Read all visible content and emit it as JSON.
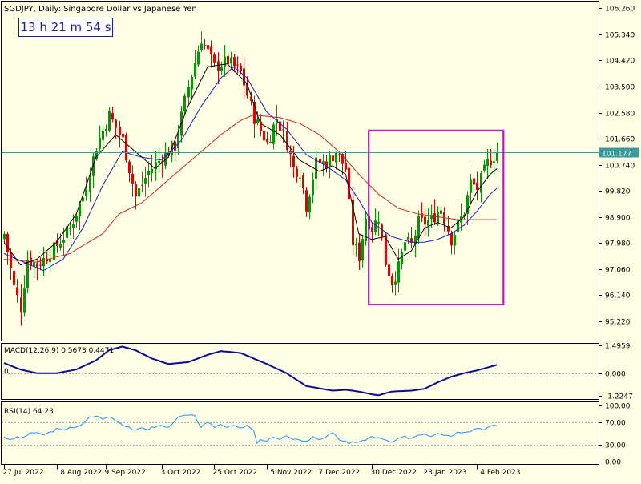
{
  "chart_data": {
    "type": "candlestick",
    "symbol": "SGDJPY",
    "timeframe": "Daily",
    "description": "Singapore Dollar vs Japanese Yen",
    "timer": "13 h 21 m 54 s",
    "current_price": 101.177,
    "price_label": "101.177",
    "price_axis": {
      "range": [
        94.5,
        106.5
      ],
      "ticks": [
        {
          "value": 106.26,
          "label": "106.260"
        },
        {
          "value": 105.34,
          "label": "105.340"
        },
        {
          "value": 104.42,
          "label": "104.420"
        },
        {
          "value": 103.5,
          "label": "103.500"
        },
        {
          "value": 102.58,
          "label": "102.580"
        },
        {
          "value": 101.66,
          "label": "101.660"
        },
        {
          "value": 100.74,
          "label": "100.740"
        },
        {
          "value": 99.82,
          "label": "99.820"
        },
        {
          "value": 98.9,
          "label": "98.900"
        },
        {
          "value": 97.98,
          "label": "97.980"
        },
        {
          "value": 97.06,
          "label": "97.060"
        },
        {
          "value": 96.14,
          "label": "96.140"
        },
        {
          "value": 95.22,
          "label": "95.220"
        }
      ]
    },
    "x_axis_labels": [
      {
        "index": 0,
        "label": "27 Jul 2022"
      },
      {
        "index": 16,
        "label": "18 Aug 2022"
      },
      {
        "index": 31,
        "label": "9 Sep 2022"
      },
      {
        "index": 48,
        "label": "3 Oct 2022"
      },
      {
        "index": 64,
        "label": "25 Oct 2022"
      },
      {
        "index": 80,
        "label": "15 Nov 2022"
      },
      {
        "index": 96,
        "label": "7 Dec 2022"
      },
      {
        "index": 112,
        "label": "30 Dec 2022"
      },
      {
        "index": 128,
        "label": "23 Jan 2023"
      },
      {
        "index": 144,
        "label": "14 Feb 2023"
      }
    ],
    "close_path": [
      [
        0,
        98.3
      ],
      [
        3,
        96.4
      ],
      [
        5,
        95.7
      ],
      [
        7,
        97.4
      ],
      [
        10,
        97.2
      ],
      [
        13,
        97.5
      ],
      [
        16,
        97.9
      ],
      [
        20,
        98.5
      ],
      [
        24,
        99.6
      ],
      [
        28,
        101.4
      ],
      [
        32,
        102.5
      ],
      [
        36,
        101.6
      ],
      [
        40,
        99.6
      ],
      [
        44,
        100.5
      ],
      [
        48,
        101.0
      ],
      [
        52,
        101.4
      ],
      [
        56,
        103.5
      ],
      [
        60,
        105.2
      ],
      [
        64,
        104.2
      ],
      [
        68,
        104.4
      ],
      [
        72,
        104.0
      ],
      [
        76,
        102.4
      ],
      [
        80,
        101.5
      ],
      [
        83,
        102.4
      ],
      [
        86,
        101.5
      ],
      [
        88,
        100.6
      ],
      [
        90,
        100.5
      ],
      [
        92,
        99.3
      ],
      [
        95,
        100.8
      ],
      [
        98,
        100.8
      ],
      [
        101,
        101.2
      ],
      [
        104,
        100.6
      ],
      [
        106,
        98.0
      ],
      [
        108,
        97.5
      ],
      [
        110,
        98.9
      ],
      [
        112,
        98.5
      ],
      [
        114,
        98.9
      ],
      [
        116,
        97.3
      ],
      [
        118,
        96.6
      ],
      [
        120,
        97.1
      ],
      [
        122,
        98.0
      ],
      [
        124,
        97.9
      ],
      [
        126,
        98.7
      ],
      [
        128,
        98.7
      ],
      [
        130,
        98.8
      ],
      [
        133,
        99.2
      ],
      [
        136,
        98.1
      ],
      [
        140,
        99.1
      ],
      [
        142,
        100.1
      ],
      [
        144,
        99.9
      ],
      [
        147,
        100.8
      ],
      [
        150,
        101.177
      ]
    ],
    "ma_fast_path": [
      [
        0,
        98.0
      ],
      [
        5,
        97.2
      ],
      [
        10,
        97.4
      ],
      [
        16,
        98.0
      ],
      [
        22,
        99.0
      ],
      [
        28,
        101.0
      ],
      [
        34,
        101.8
      ],
      [
        40,
        101.2
      ],
      [
        46,
        100.6
      ],
      [
        50,
        101.0
      ],
      [
        56,
        102.8
      ],
      [
        62,
        104.2
      ],
      [
        68,
        104.3
      ],
      [
        74,
        103.6
      ],
      [
        78,
        102.2
      ],
      [
        84,
        101.8
      ],
      [
        90,
        100.9
      ],
      [
        96,
        100.5
      ],
      [
        100,
        100.7
      ],
      [
        104,
        100.4
      ],
      [
        108,
        98.3
      ],
      [
        112,
        98.1
      ],
      [
        116,
        98.2
      ],
      [
        120,
        97.4
      ],
      [
        124,
        97.7
      ],
      [
        128,
        98.5
      ],
      [
        132,
        98.7
      ],
      [
        136,
        98.5
      ],
      [
        140,
        98.9
      ],
      [
        144,
        99.8
      ],
      [
        148,
        100.4
      ],
      [
        150,
        100.6
      ]
    ],
    "ma_mid_path": [
      [
        0,
        97.6
      ],
      [
        6,
        97.3
      ],
      [
        12,
        97.0
      ],
      [
        18,
        97.4
      ],
      [
        24,
        98.5
      ],
      [
        30,
        100.0
      ],
      [
        36,
        101.2
      ],
      [
        42,
        101.0
      ],
      [
        48,
        100.9
      ],
      [
        54,
        101.6
      ],
      [
        60,
        102.8
      ],
      [
        66,
        103.8
      ],
      [
        70,
        104.2
      ],
      [
        74,
        103.8
      ],
      [
        80,
        102.6
      ],
      [
        86,
        102.0
      ],
      [
        92,
        101.1
      ],
      [
        98,
        100.7
      ],
      [
        104,
        100.2
      ],
      [
        108,
        99.5
      ],
      [
        112,
        98.7
      ],
      [
        118,
        98.2
      ],
      [
        124,
        98.0
      ],
      [
        128,
        98.0
      ],
      [
        132,
        98.1
      ],
      [
        136,
        98.3
      ],
      [
        140,
        98.6
      ],
      [
        144,
        99.1
      ],
      [
        148,
        99.7
      ],
      [
        150,
        99.9
      ]
    ],
    "ma_slow_path": [
      [
        0,
        97.4
      ],
      [
        10,
        97.3
      ],
      [
        20,
        97.6
      ],
      [
        30,
        98.3
      ],
      [
        35,
        99.0
      ],
      [
        42,
        99.4
      ],
      [
        48,
        100.0
      ],
      [
        54,
        100.6
      ],
      [
        60,
        101.2
      ],
      [
        66,
        101.8
      ],
      [
        72,
        102.3
      ],
      [
        76,
        102.5
      ],
      [
        84,
        102.4
      ],
      [
        90,
        102.2
      ],
      [
        96,
        101.8
      ],
      [
        102,
        101.2
      ],
      [
        108,
        100.4
      ],
      [
        114,
        99.7
      ],
      [
        120,
        99.2
      ],
      [
        126,
        99.0
      ],
      [
        132,
        98.9
      ],
      [
        138,
        98.8
      ],
      [
        144,
        98.8
      ],
      [
        148,
        98.8
      ],
      [
        150,
        98.8
      ]
    ],
    "highlight_box": {
      "from_index": 111,
      "to_index": 152,
      "price_top": 101.95,
      "price_bottom": 95.8
    },
    "macd": {
      "label": "MACD(12,26,9) 0.5673 0.4471",
      "zero_label": "0",
      "range": [
        -1.45,
        1.6
      ],
      "ticks": [
        {
          "value": 1.4959,
          "label": "1.4959"
        },
        {
          "value": 0.0,
          "label": "0.000"
        },
        {
          "value": -1.2247,
          "label": "-1.2247"
        }
      ],
      "path": [
        [
          0,
          0.55
        ],
        [
          5,
          0.2
        ],
        [
          10,
          0.0
        ],
        [
          16,
          0.0
        ],
        [
          22,
          0.2
        ],
        [
          28,
          0.7
        ],
        [
          32,
          1.25
        ],
        [
          36,
          1.45
        ],
        [
          40,
          1.25
        ],
        [
          45,
          0.8
        ],
        [
          50,
          0.5
        ],
        [
          56,
          0.6
        ],
        [
          62,
          1.0
        ],
        [
          66,
          1.2
        ],
        [
          72,
          1.1
        ],
        [
          76,
          0.8
        ],
        [
          80,
          0.5
        ],
        [
          86,
          0.0
        ],
        [
          92,
          -0.7
        ],
        [
          100,
          -0.95
        ],
        [
          104,
          -0.9
        ],
        [
          108,
          -1.0
        ],
        [
          112,
          -1.15
        ],
        [
          114,
          -1.2
        ],
        [
          118,
          -1.0
        ],
        [
          124,
          -0.95
        ],
        [
          128,
          -0.85
        ],
        [
          132,
          -0.5
        ],
        [
          136,
          -0.2
        ],
        [
          140,
          0.0
        ],
        [
          144,
          0.15
        ],
        [
          148,
          0.35
        ],
        [
          150,
          0.45
        ]
      ]
    },
    "rsi": {
      "label": "RSI(14) 64.23",
      "range": [
        -5,
        105
      ],
      "ticks": [
        {
          "value": 100,
          "label": "100.00"
        },
        {
          "value": 70,
          "label": "70.00"
        },
        {
          "value": 30,
          "label": "30.00"
        },
        {
          "value": 0,
          "label": "0.00"
        }
      ],
      "path": [
        [
          0,
          45
        ],
        [
          2,
          38
        ],
        [
          4,
          44
        ],
        [
          6,
          42
        ],
        [
          8,
          52
        ],
        [
          10,
          50
        ],
        [
          12,
          48
        ],
        [
          14,
          52
        ],
        [
          16,
          58
        ],
        [
          18,
          55
        ],
        [
          20,
          62
        ],
        [
          22,
          60
        ],
        [
          24,
          66
        ],
        [
          26,
          80
        ],
        [
          27,
          78
        ],
        [
          28,
          82
        ],
        [
          30,
          75
        ],
        [
          32,
          80
        ],
        [
          34,
          74
        ],
        [
          36,
          66
        ],
        [
          38,
          62
        ],
        [
          40,
          54
        ],
        [
          42,
          60
        ],
        [
          44,
          58
        ],
        [
          46,
          62
        ],
        [
          48,
          64
        ],
        [
          50,
          60
        ],
        [
          52,
          74
        ],
        [
          54,
          80
        ],
        [
          56,
          82
        ],
        [
          58,
          80
        ],
        [
          60,
          62
        ],
        [
          62,
          68
        ],
        [
          64,
          62
        ],
        [
          66,
          66
        ],
        [
          68,
          62
        ],
        [
          70,
          66
        ],
        [
          72,
          58
        ],
        [
          74,
          64
        ],
        [
          76,
          54
        ],
        [
          77,
          34
        ],
        [
          78,
          38
        ],
        [
          80,
          36
        ],
        [
          82,
          45
        ],
        [
          84,
          40
        ],
        [
          86,
          46
        ],
        [
          88,
          38
        ],
        [
          90,
          40
        ],
        [
          92,
          36
        ],
        [
          94,
          44
        ],
        [
          96,
          40
        ],
        [
          98,
          45
        ],
        [
          100,
          50
        ],
        [
          102,
          40
        ],
        [
          104,
          36
        ],
        [
          105,
          30
        ],
        [
          106,
          35
        ],
        [
          108,
          36
        ],
        [
          110,
          38
        ],
        [
          112,
          45
        ],
        [
          114,
          42
        ],
        [
          116,
          38
        ],
        [
          118,
          34
        ],
        [
          120,
          40
        ],
        [
          122,
          44
        ],
        [
          124,
          42
        ],
        [
          126,
          48
        ],
        [
          128,
          50
        ],
        [
          130,
          46
        ],
        [
          132,
          52
        ],
        [
          134,
          48
        ],
        [
          136,
          46
        ],
        [
          138,
          52
        ],
        [
          140,
          54
        ],
        [
          142,
          55
        ],
        [
          144,
          60
        ],
        [
          146,
          58
        ],
        [
          148,
          62
        ],
        [
          150,
          64.23
        ]
      ]
    }
  },
  "colors": {
    "background": "#ffffe6",
    "bull_candle": "#009a00",
    "bear_candle": "#e00000",
    "ma_fast": "#000000",
    "ma_mid": "#1a1acc",
    "ma_slow": "#e02020",
    "current_price_line": "#3a9a9a",
    "highlight_box": "#e000e0",
    "macd_line": "#0a0a9a",
    "rsi_line": "#1e90ff",
    "grid": "#b0b0b0"
  }
}
